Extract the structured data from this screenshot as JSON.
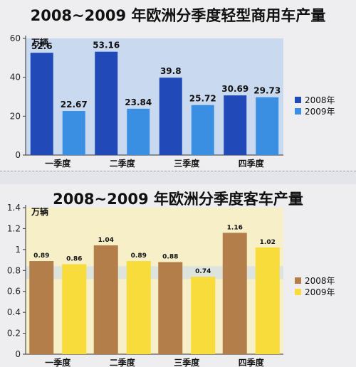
{
  "chart_data": [
    {
      "type": "bar",
      "title": "2008~2009 年欧洲分季度轻型商用车产量",
      "unit_label": "万辆",
      "categories": [
        "一季度",
        "二季度",
        "三季度",
        "四季度"
      ],
      "series": [
        {
          "name": "2008年",
          "values": [
            52.6,
            53.16,
            39.8,
            30.69
          ],
          "labels": [
            "52.6",
            "53.16",
            "39.8",
            "30.69"
          ],
          "color": "#2149b8"
        },
        {
          "name": "2009年",
          "values": [
            22.67,
            23.84,
            25.72,
            29.73
          ],
          "labels": [
            "22.67",
            "23.84",
            "25.72",
            "29.73"
          ],
          "color": "#3b8fe3"
        }
      ],
      "ylim": [
        0,
        60
      ],
      "yticks": [
        0,
        20,
        40,
        60
      ],
      "ytick_labels": [
        "0",
        "20",
        "40",
        "60"
      ],
      "plot_bg": "#c9daf0",
      "legend_position": "right"
    },
    {
      "type": "bar",
      "title": "2008~2009 年欧洲分季度客车产量",
      "unit_label": "万辆",
      "categories": [
        "一季度",
        "二季度",
        "三季度",
        "四季度"
      ],
      "series": [
        {
          "name": "2008年",
          "values": [
            0.89,
            1.04,
            0.88,
            1.16
          ],
          "labels": [
            "0.89",
            "1.04",
            "0.88",
            "1.16"
          ],
          "color": "#b37e4a"
        },
        {
          "name": "2009年",
          "values": [
            0.86,
            0.89,
            0.74,
            1.02
          ],
          "labels": [
            "0.86",
            "0.89",
            "0.74",
            "1.02"
          ],
          "color": "#f7dc3c"
        }
      ],
      "ylim": [
        0,
        1.4
      ],
      "yticks": [
        0,
        0.2,
        0.4,
        0.6,
        0.8,
        1,
        1.2,
        1.4
      ],
      "ytick_labels": [
        "0",
        "0.2",
        "0.4",
        "0.6",
        "0.8",
        "1",
        "1.2",
        "1.4"
      ],
      "plot_bg": "#f6efc8",
      "band_color": "#c9daf0",
      "legend_position": "right"
    }
  ]
}
